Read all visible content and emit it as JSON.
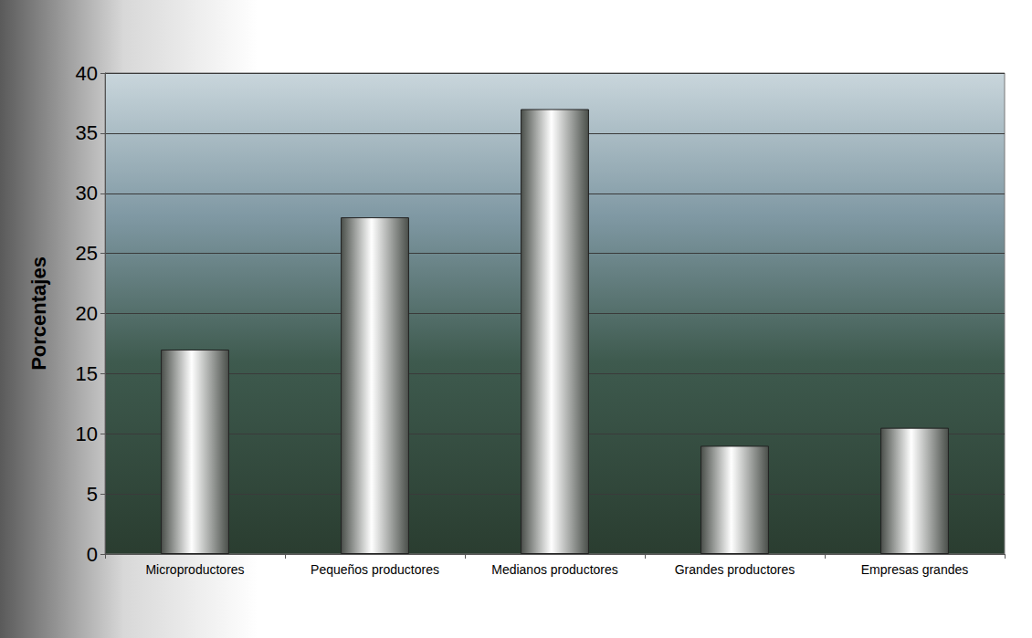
{
  "chart_data": {
    "type": "bar",
    "categories": [
      "Microproductores",
      "Pequeños productores",
      "Medianos productores",
      "Grandes productores",
      "Empresas grandes"
    ],
    "values": [
      17,
      28,
      37,
      9,
      10.5
    ],
    "color": "#4a4f4a",
    "y_label": "Porcentajes",
    "ylim": [
      0,
      40
    ],
    "yticks": [
      0,
      5,
      10,
      15,
      20,
      25,
      30,
      35,
      40
    ],
    "grid": true
  }
}
